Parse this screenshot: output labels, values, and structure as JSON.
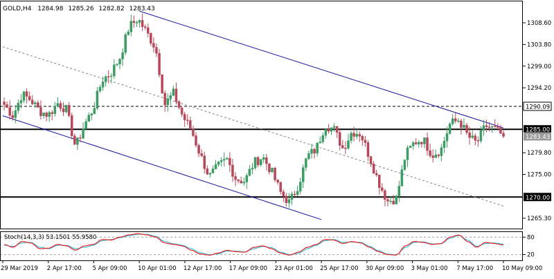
{
  "header": {
    "title": "GOLD,H4",
    "ohlc": [
      "1284.98",
      "1285.26",
      "1282.82",
      "1283.43"
    ]
  },
  "chart_data": [
    {
      "type": "candlestick",
      "symbol": "GOLD",
      "timeframe": "H4",
      "ylim": [
        1263.0,
        1313.5
      ],
      "y_ticks": [
        "1308.60",
        "1303.80",
        "1299.00",
        "1294.20",
        "1279.80",
        "1275.00",
        "1265.30"
      ],
      "price_tags": [
        {
          "label": "1290.09",
          "value": 1290.09,
          "kind": "dashed-level"
        },
        {
          "label": "1285.00",
          "value": 1285.0,
          "kind": "solid-level"
        },
        {
          "label": "1283.43",
          "value": 1283.43,
          "kind": "current-price"
        },
        {
          "label": "1270.00",
          "value": 1270.0,
          "kind": "solid-level"
        }
      ],
      "x_ticks": [
        "29 Mar 2019",
        "2 Apr 17:00",
        "5 Apr 09:00",
        "10 Apr 01:00",
        "12 Apr 17:00",
        "17 Apr 09:00",
        "23 Apr 01:00",
        "25 Apr 17:00",
        "30 Apr 09:00",
        "3 May 01:00",
        "7 May 17:00",
        "10 May 09:00"
      ],
      "close_path": [
        1290.5,
        1288.0,
        1292.8,
        1291.5,
        1289.0,
        1288.2,
        1290.8,
        1289.3,
        1281.0,
        1286.0,
        1289.6,
        1296.0,
        1297.5,
        1301.0,
        1307.7,
        1309.5,
        1306.4,
        1303.0,
        1290.5,
        1293.0,
        1288.0,
        1284.8,
        1279.3,
        1274.5,
        1276.8,
        1278.3,
        1274.0,
        1273.5,
        1277.6,
        1278.9,
        1275.6,
        1271.0,
        1268.7,
        1272.7,
        1279.0,
        1280.6,
        1286.0,
        1285.0,
        1280.7,
        1284.5,
        1284.0,
        1278.8,
        1273.3,
        1269.1,
        1269.7,
        1279.3,
        1282.1,
        1282.8,
        1279.3,
        1280.5,
        1286.2,
        1287.1,
        1283.5,
        1281.9,
        1285.8,
        1285.0,
        1283.6
      ],
      "levels": {
        "dashed": 1290.09,
        "solid": [
          1285.0,
          1270.0
        ]
      },
      "trendlines": [
        {
          "style": "channel-upper",
          "points": [
            [
              "10 Apr 01:00",
              1311.2
            ],
            [
              "10 May 09:00",
              1285.3
            ]
          ]
        },
        {
          "style": "channel-lower",
          "points": [
            [
              "29 Mar 2019",
              1288.0
            ],
            [
              "25 Apr 17:00",
              1265.0
            ]
          ]
        },
        {
          "style": "mid-dotted",
          "points": [
            [
              "29 Mar 2019",
              1303.3
            ],
            [
              "10 May 09:00",
              1268.0
            ]
          ]
        }
      ]
    },
    {
      "type": "line",
      "title": "Stoch(14,3,3) 53.1501 55.9580",
      "indicator": "Stochastic",
      "params": [
        14,
        3,
        3
      ],
      "values": {
        "main": 53.1501,
        "signal": 55.958
      },
      "ylim": [
        0,
        100
      ],
      "levels": [
        80,
        20
      ],
      "y_ticks": [
        "80",
        "20"
      ],
      "series": [
        {
          "color": "#ef2020",
          "values": [
            55,
            45,
            65,
            60,
            40,
            42,
            55,
            50,
            35,
            50,
            55,
            72,
            70,
            80,
            88,
            92,
            88,
            80,
            60,
            55,
            50,
            35,
            22,
            18,
            25,
            35,
            30,
            28,
            45,
            50,
            40,
            25,
            18,
            28,
            45,
            55,
            72,
            70,
            58,
            65,
            60,
            45,
            30,
            20,
            18,
            50,
            65,
            62,
            55,
            58,
            80,
            88,
            65,
            45,
            62,
            58,
            53
          ]
        },
        {
          "color": "#40c0e0",
          "values": [
            52,
            48,
            60,
            62,
            45,
            40,
            52,
            52,
            40,
            45,
            52,
            68,
            72,
            78,
            85,
            90,
            90,
            83,
            65,
            57,
            52,
            40,
            26,
            20,
            22,
            32,
            32,
            29,
            40,
            48,
            44,
            28,
            20,
            24,
            40,
            52,
            68,
            72,
            62,
            63,
            62,
            48,
            33,
            22,
            19,
            44,
            62,
            64,
            57,
            57,
            76,
            86,
            70,
            48,
            58,
            60,
            56
          ]
        }
      ]
    }
  ],
  "colors": {
    "background": "#ffffff",
    "frame": "#000000",
    "grid": "#c8c8c8",
    "bull": "#3c9c64",
    "bear": "#b7485a",
    "channel": "#1010a0",
    "midline": "#808080",
    "stoch_main": "#ef2020",
    "stoch_signal": "#40c0e0"
  }
}
